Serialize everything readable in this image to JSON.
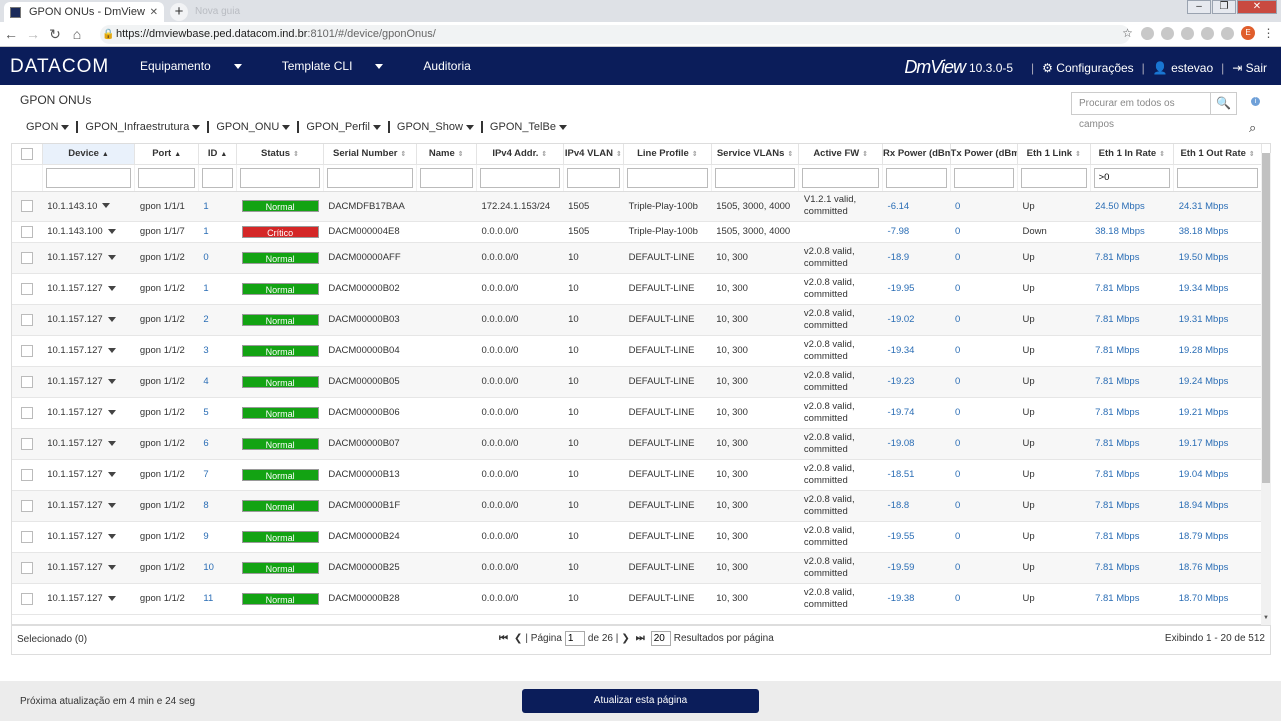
{
  "browser": {
    "tab_title": "GPON ONUs - DmView",
    "ghost_tab": "Nova guia",
    "url_host": "https://dmviewbase.ped.datacom.ind.br",
    "url_rest": ":8101/#/device/gponOnus/",
    "user_initial": "E"
  },
  "header": {
    "logo": "DATACOM",
    "nav": [
      "Equipamento",
      "Template CLI",
      "Auditoria"
    ],
    "product": "DmView",
    "version": "10.3.0-5",
    "settings": "Configurações",
    "user": "estevao",
    "logout": "Sair"
  },
  "page": {
    "title": "GPON ONUs",
    "search_placeholder": "Procurar em todos os campos",
    "menus": [
      "GPON",
      "GPON_Infraestrutura",
      "GPON_ONU",
      "GPON_Perfil",
      "GPON_Show",
      "GPON_TelBe"
    ]
  },
  "table": {
    "columns": [
      "Device",
      "Port",
      "ID",
      "Status",
      "Serial Number",
      "Name",
      "IPv4 Addr.",
      "IPv4 VLAN",
      "Line Profile",
      "Service VLANs",
      "Active FW",
      "Rx Power (dBm)",
      "Tx Power (dBm)",
      "Eth 1 Link",
      "Eth 1 In Rate",
      "Eth 1 Out Rate"
    ],
    "filters": {
      "eth1_in_rate": ">0"
    },
    "rows": [
      {
        "device": "10.1.143.10",
        "port": "gpon 1/1/1",
        "id": "1",
        "status": "Normal",
        "serial": "DACMDFB17BAA",
        "name": "",
        "ipv4": "172.24.1.153/24",
        "vlan": "1505",
        "profile": "Triple-Play-100b",
        "svlans": "1505, 3000, 4000",
        "fw": "V1.2.1 valid, committed",
        "rx": "-6.14",
        "tx": "0",
        "link": "Up",
        "in": "24.50 Mbps",
        "out": "24.31 Mbps"
      },
      {
        "device": "10.1.143.100",
        "port": "gpon 1/1/7",
        "id": "1",
        "status": "Crítico",
        "serial": "DACM000004E8",
        "name": "",
        "ipv4": "0.0.0.0/0",
        "vlan": "1505",
        "profile": "Triple-Play-100b",
        "svlans": "1505, 3000, 4000",
        "fw": "",
        "rx": "-7.98",
        "tx": "0",
        "link": "Down",
        "in": "38.18 Mbps",
        "out": "38.18 Mbps"
      },
      {
        "device": "10.1.157.127",
        "port": "gpon 1/1/2",
        "id": "0",
        "status": "Normal",
        "serial": "DACM00000AFF",
        "name": "",
        "ipv4": "0.0.0.0/0",
        "vlan": "10",
        "profile": "DEFAULT-LINE",
        "svlans": "10, 300",
        "fw": "v2.0.8 valid, committed",
        "rx": "-18.9",
        "tx": "0",
        "link": "Up",
        "in": "7.81 Mbps",
        "out": "19.50 Mbps"
      },
      {
        "device": "10.1.157.127",
        "port": "gpon 1/1/2",
        "id": "1",
        "status": "Normal",
        "serial": "DACM00000B02",
        "name": "",
        "ipv4": "0.0.0.0/0",
        "vlan": "10",
        "profile": "DEFAULT-LINE",
        "svlans": "10, 300",
        "fw": "v2.0.8 valid, committed",
        "rx": "-19.95",
        "tx": "0",
        "link": "Up",
        "in": "7.81 Mbps",
        "out": "19.34 Mbps"
      },
      {
        "device": "10.1.157.127",
        "port": "gpon 1/1/2",
        "id": "2",
        "status": "Normal",
        "serial": "DACM00000B03",
        "name": "",
        "ipv4": "0.0.0.0/0",
        "vlan": "10",
        "profile": "DEFAULT-LINE",
        "svlans": "10, 300",
        "fw": "v2.0.8 valid, committed",
        "rx": "-19.02",
        "tx": "0",
        "link": "Up",
        "in": "7.81 Mbps",
        "out": "19.31 Mbps"
      },
      {
        "device": "10.1.157.127",
        "port": "gpon 1/1/2",
        "id": "3",
        "status": "Normal",
        "serial": "DACM00000B04",
        "name": "",
        "ipv4": "0.0.0.0/0",
        "vlan": "10",
        "profile": "DEFAULT-LINE",
        "svlans": "10, 300",
        "fw": "v2.0.8 valid, committed",
        "rx": "-19.34",
        "tx": "0",
        "link": "Up",
        "in": "7.81 Mbps",
        "out": "19.28 Mbps"
      },
      {
        "device": "10.1.157.127",
        "port": "gpon 1/1/2",
        "id": "4",
        "status": "Normal",
        "serial": "DACM00000B05",
        "name": "",
        "ipv4": "0.0.0.0/0",
        "vlan": "10",
        "profile": "DEFAULT-LINE",
        "svlans": "10, 300",
        "fw": "v2.0.8 valid, committed",
        "rx": "-19.23",
        "tx": "0",
        "link": "Up",
        "in": "7.81 Mbps",
        "out": "19.24 Mbps"
      },
      {
        "device": "10.1.157.127",
        "port": "gpon 1/1/2",
        "id": "5",
        "status": "Normal",
        "serial": "DACM00000B06",
        "name": "",
        "ipv4": "0.0.0.0/0",
        "vlan": "10",
        "profile": "DEFAULT-LINE",
        "svlans": "10, 300",
        "fw": "v2.0.8 valid, committed",
        "rx": "-19.74",
        "tx": "0",
        "link": "Up",
        "in": "7.81 Mbps",
        "out": "19.21 Mbps"
      },
      {
        "device": "10.1.157.127",
        "port": "gpon 1/1/2",
        "id": "6",
        "status": "Normal",
        "serial": "DACM00000B07",
        "name": "",
        "ipv4": "0.0.0.0/0",
        "vlan": "10",
        "profile": "DEFAULT-LINE",
        "svlans": "10, 300",
        "fw": "v2.0.8 valid, committed",
        "rx": "-19.08",
        "tx": "0",
        "link": "Up",
        "in": "7.81 Mbps",
        "out": "19.17 Mbps"
      },
      {
        "device": "10.1.157.127",
        "port": "gpon 1/1/2",
        "id": "7",
        "status": "Normal",
        "serial": "DACM00000B13",
        "name": "",
        "ipv4": "0.0.0.0/0",
        "vlan": "10",
        "profile": "DEFAULT-LINE",
        "svlans": "10, 300",
        "fw": "v2.0.8 valid, committed",
        "rx": "-18.51",
        "tx": "0",
        "link": "Up",
        "in": "7.81 Mbps",
        "out": "19.04 Mbps"
      },
      {
        "device": "10.1.157.127",
        "port": "gpon 1/1/2",
        "id": "8",
        "status": "Normal",
        "serial": "DACM00000B1F",
        "name": "",
        "ipv4": "0.0.0.0/0",
        "vlan": "10",
        "profile": "DEFAULT-LINE",
        "svlans": "10, 300",
        "fw": "v2.0.8 valid, committed",
        "rx": "-18.8",
        "tx": "0",
        "link": "Up",
        "in": "7.81 Mbps",
        "out": "18.94 Mbps"
      },
      {
        "device": "10.1.157.127",
        "port": "gpon 1/1/2",
        "id": "9",
        "status": "Normal",
        "serial": "DACM00000B24",
        "name": "",
        "ipv4": "0.0.0.0/0",
        "vlan": "10",
        "profile": "DEFAULT-LINE",
        "svlans": "10, 300",
        "fw": "v2.0.8 valid, committed",
        "rx": "-19.55",
        "tx": "0",
        "link": "Up",
        "in": "7.81 Mbps",
        "out": "18.79 Mbps"
      },
      {
        "device": "10.1.157.127",
        "port": "gpon 1/1/2",
        "id": "10",
        "status": "Normal",
        "serial": "DACM00000B25",
        "name": "",
        "ipv4": "0.0.0.0/0",
        "vlan": "10",
        "profile": "DEFAULT-LINE",
        "svlans": "10, 300",
        "fw": "v2.0.8 valid, committed",
        "rx": "-19.59",
        "tx": "0",
        "link": "Up",
        "in": "7.81 Mbps",
        "out": "18.76 Mbps"
      },
      {
        "device": "10.1.157.127",
        "port": "gpon 1/1/2",
        "id": "11",
        "status": "Normal",
        "serial": "DACM00000B28",
        "name": "",
        "ipv4": "0.0.0.0/0",
        "vlan": "10",
        "profile": "DEFAULT-LINE",
        "svlans": "10, 300",
        "fw": "v2.0.8 valid, committed",
        "rx": "-19.38",
        "tx": "0",
        "link": "Up",
        "in": "7.81 Mbps",
        "out": "18.70 Mbps"
      }
    ],
    "status_colors": {
      "Normal": "#13a313",
      "Crítico": "#d42727"
    }
  },
  "footer": {
    "selected": "Selecionado (0)",
    "page_label": "Página",
    "page_value": "1",
    "of_pages": "de 26",
    "page_size": "20",
    "results_label": "Resultados por página",
    "showing": "Exibindo 1 - 20 de 512"
  },
  "bottom": {
    "next_update": "Próxima atualização em 4 min e 24 seg",
    "refresh_button": "Atualizar esta página"
  }
}
